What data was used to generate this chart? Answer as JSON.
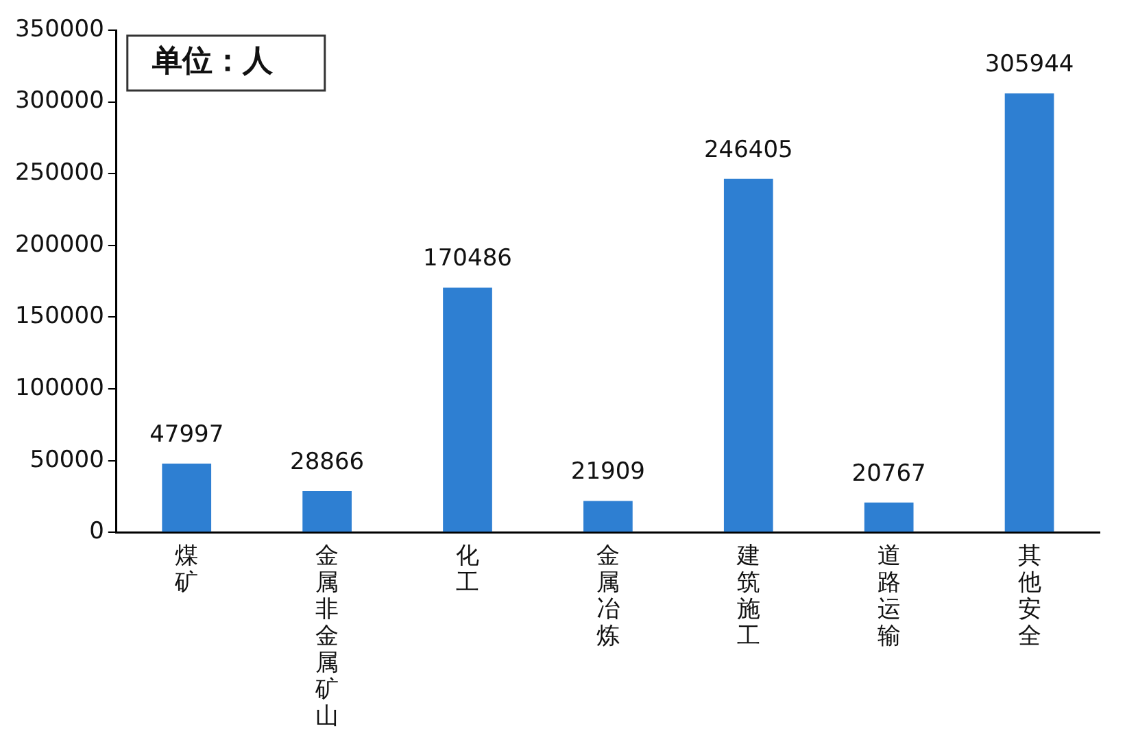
{
  "chart_data": {
    "type": "bar",
    "categories": [
      "煤矿",
      "金属非金属矿山",
      "化工",
      "金属冶炼",
      "建筑施工",
      "道路运输",
      "其他安全"
    ],
    "values": [
      47997,
      28866,
      170486,
      21909,
      246405,
      20767,
      305944
    ],
    "color": "#2e7fd2",
    "ylim": [
      0,
      350000
    ],
    "yticks": [
      0,
      50000,
      100000,
      150000,
      200000,
      250000,
      300000,
      350000
    ],
    "grid": false,
    "data_labels": true,
    "legend": false,
    "annotations": [
      "单位：人"
    ]
  }
}
